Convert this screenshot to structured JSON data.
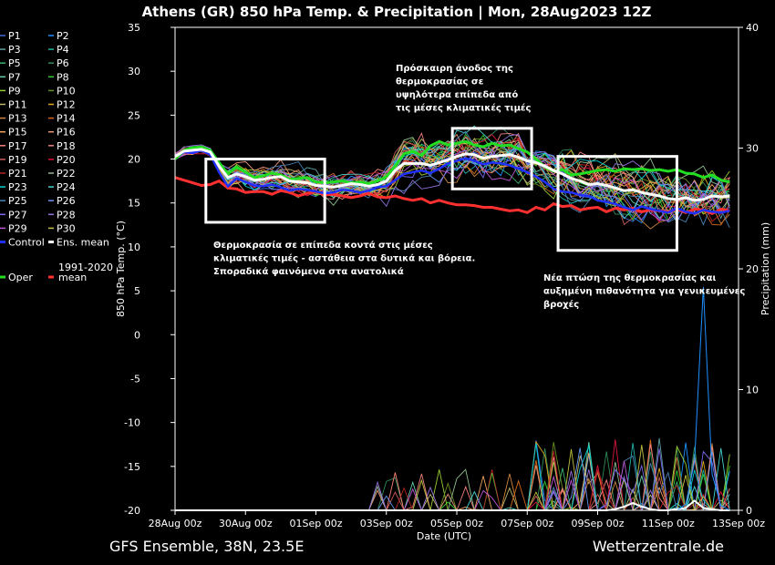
{
  "chart_data": {
    "type": "line",
    "title": "Athens  (GR)  850 hPa Temp. & Precipitation | Mon, 28Aug2023 12Z",
    "xlabel": "Date (UTC)",
    "ylabel": "850 hPa Temp. (°C)",
    "y2label": "Precipitation (mm)",
    "ylim": [
      -20,
      35
    ],
    "y2lim": [
      0,
      40
    ],
    "yticks": [
      "35",
      "30",
      "25",
      "20",
      "15",
      "10",
      "5",
      "0",
      "-5",
      "-10",
      "-15",
      "-20"
    ],
    "y2ticks": [
      "40",
      "30",
      "20",
      "10",
      "0"
    ],
    "xticks": [
      "28Aug 00z",
      "30Aug 00z",
      "01Sep 00z",
      "03Sep 00z",
      "05Sep 00z",
      "07Sep 00z",
      "09Sep 00z",
      "11Sep 00z",
      "13Sep 00z"
    ],
    "x_start": "28Aug 00z",
    "x_step_hours": 6,
    "n_steps": 64,
    "grid": false,
    "legend_position": "left",
    "legend": [
      [
        "P1",
        "P2"
      ],
      [
        "P3",
        "P4"
      ],
      [
        "P5",
        "P6"
      ],
      [
        "P7",
        "P8"
      ],
      [
        "P9",
        "P10"
      ],
      [
        "P11",
        "P12"
      ],
      [
        "P13",
        "P14"
      ],
      [
        "P15",
        "P16"
      ],
      [
        "P17",
        "P18"
      ],
      [
        "P19",
        "P20"
      ],
      [
        "P21",
        "P22"
      ],
      [
        "P23",
        "P24"
      ],
      [
        "P25",
        "P26"
      ],
      [
        "P27",
        "P28"
      ],
      [
        "P29",
        "P30"
      ],
      [
        "Control",
        "Ens. mean"
      ],
      [
        "Oper",
        "1991-2020 mean"
      ]
    ],
    "colors": {
      "background": "#000000",
      "oper": "#22dd22",
      "ens_mean": "#ffffff",
      "control": "#2030ff",
      "climate_mean": "#ff3030",
      "boxes": "#ffffff"
    },
    "member_colors": [
      "#4169e1",
      "#1e90ff",
      "#5f9ea0",
      "#20b2aa",
      "#3cb371",
      "#2e8b57",
      "#66cdaa",
      "#32cd32",
      "#9acd32",
      "#6b8e23",
      "#bdb76b",
      "#daa520",
      "#cd853f",
      "#d2691e",
      "#f4a460",
      "#e9967a",
      "#fa8072",
      "#f08080",
      "#cd5c5c",
      "#dc143c",
      "#b22222",
      "#8fbc8f",
      "#00ced1",
      "#48d1cc",
      "#4682b4",
      "#6495ed",
      "#7b68ee",
      "#9370db",
      "#ba55d3",
      "#c0c040"
    ],
    "series": [
      {
        "name": "Ens. mean",
        "values": [
          20.3,
          20.9,
          21.0,
          21.1,
          20.8,
          19.2,
          17.9,
          18.3,
          18.0,
          17.6,
          17.7,
          17.9,
          18.0,
          17.5,
          17.4,
          17.3,
          17.0,
          16.9,
          16.8,
          17.0,
          17.2,
          17.1,
          16.9,
          17.1,
          17.5,
          18.7,
          19.5,
          19.5,
          19.5,
          19.3,
          19.6,
          19.9,
          20.3,
          20.6,
          20.5,
          20.1,
          20.3,
          20.4,
          20.5,
          20.2,
          19.8,
          19.6,
          19.2,
          18.7,
          18.3,
          17.8,
          17.5,
          17.1,
          17.2,
          17.0,
          16.7,
          16.4,
          16.5,
          16.2,
          16.0,
          15.8,
          15.5,
          15.4,
          15.6,
          15.3,
          15.4,
          15.8,
          15.7,
          15.8
        ]
      },
      {
        "name": "Oper",
        "values": [
          20.0,
          21.0,
          21.3,
          21.4,
          21.0,
          19.6,
          18.3,
          19.1,
          18.5,
          17.9,
          18.1,
          18.4,
          18.2,
          17.7,
          17.8,
          17.9,
          17.4,
          17.3,
          17.4,
          17.5,
          17.3,
          17.4,
          17.2,
          17.5,
          18.0,
          19.2,
          20.6,
          20.9,
          20.4,
          21.5,
          22.0,
          21.6,
          21.8,
          22.0,
          21.6,
          21.4,
          21.8,
          21.5,
          21.6,
          21.2,
          20.8,
          20.0,
          19.1,
          18.6,
          18.8,
          18.2,
          18.3,
          18.5,
          18.7,
          18.8,
          18.6,
          18.9,
          18.8,
          18.9,
          18.7,
          18.8,
          18.6,
          18.8,
          18.4,
          18.3,
          17.9,
          18.2,
          17.6,
          17.4
        ]
      },
      {
        "name": "Control",
        "values": [
          20.1,
          20.8,
          20.7,
          21.0,
          20.5,
          18.5,
          16.9,
          17.8,
          17.4,
          17.0,
          16.9,
          17.1,
          16.8,
          16.4,
          16.6,
          16.5,
          16.3,
          16.1,
          16.2,
          16.5,
          16.4,
          16.2,
          16.4,
          16.8,
          16.9,
          17.6,
          18.3,
          18.5,
          18.7,
          18.4,
          18.9,
          19.5,
          19.8,
          20.1,
          19.8,
          19.4,
          19.6,
          19.5,
          19.3,
          18.9,
          18.5,
          18.0,
          17.4,
          16.6,
          16.3,
          16.2,
          15.9,
          15.8,
          15.3,
          15.1,
          14.9,
          14.5,
          14.2,
          14.6,
          14.3,
          14.1,
          13.9,
          14.4,
          14.0,
          13.8,
          14.2,
          14.0,
          13.9,
          14.1
        ]
      },
      {
        "name": "1991-2020 mean",
        "values": [
          17.9,
          17.6,
          17.3,
          17.0,
          17.1,
          17.5,
          16.7,
          16.6,
          16.2,
          16.3,
          16.3,
          16.0,
          16.4,
          16.2,
          15.8,
          16.1,
          16.3,
          15.9,
          16.0,
          15.8,
          15.6,
          15.8,
          16.1,
          15.7,
          15.6,
          15.8,
          15.5,
          15.3,
          15.5,
          15.0,
          15.3,
          15.0,
          14.8,
          14.8,
          14.7,
          14.5,
          14.5,
          14.3,
          14.1,
          14.2,
          13.9,
          14.5,
          14.2,
          14.9,
          14.6,
          14.7,
          14.2,
          14.4,
          14.5,
          14.0,
          14.4,
          14.2,
          14.4,
          14.0,
          14.2,
          14.1,
          14.0,
          14.3,
          13.9,
          14.3,
          14.2,
          13.8,
          14.3,
          14.1
        ]
      }
    ],
    "precip_highlights": [
      {
        "name": "Ens. mean precipitation",
        "values": [
          0,
          0,
          0,
          0,
          0,
          0,
          0,
          0,
          0,
          0,
          0,
          0,
          0,
          0,
          0,
          0,
          0,
          0,
          0,
          0,
          0,
          0,
          0,
          0,
          0,
          0,
          0,
          0,
          0,
          0,
          0,
          0,
          0,
          0,
          0,
          0,
          0,
          0,
          0,
          0,
          0,
          0,
          0,
          0,
          0,
          0,
          0,
          0,
          0,
          0,
          0.1,
          0.3,
          0.6,
          0.3,
          0.1,
          0,
          0,
          0.1,
          0.2,
          0.8,
          0.2,
          0.1,
          0,
          0
        ]
      },
      {
        "name": "P spike",
        "values": [
          0,
          0,
          0,
          0,
          0,
          0,
          0,
          0,
          0,
          0,
          0,
          0,
          0,
          0,
          0,
          0,
          0,
          0,
          0,
          0,
          0,
          0,
          0,
          0,
          0,
          0,
          0,
          0,
          0,
          0,
          0,
          0,
          0,
          0,
          0,
          0,
          0,
          0,
          0,
          0,
          0,
          0,
          0,
          0,
          0,
          0,
          0,
          0,
          0,
          0,
          0,
          0,
          0,
          0,
          0,
          0,
          0,
          0,
          0.5,
          4.0,
          18.5,
          3.0,
          0.4,
          0
        ]
      }
    ],
    "annotations": [
      {
        "box": {
          "x_start": 14,
          "x_end": 68,
          "y_top": 20,
          "y_bottom": 12.8
        },
        "text": [
          "Θερμοκρασία σε επίπεδα κοντά στις μέσες",
          "κλιματικές τιμές - αστάθεια στα δυτικά και βόρεια.",
          "Σποραδικά φαινόμενα στα ανατολικά"
        ]
      },
      {
        "box": {
          "x_start": 126,
          "x_end": 162,
          "y_top": 23.5,
          "y_bottom": 16.6
        },
        "text": [
          "Πρόσκαιρη άνοδος της",
          "θερμοκρασίας σε",
          "υψηλότερα επίπεδα από",
          "τις μέσες κλιματικές τιμές"
        ]
      },
      {
        "box": {
          "x_start": 174,
          "x_end": 228,
          "y_top": 20.3,
          "y_bottom": 9.6
        },
        "text": [
          "Νέα πτώση της θερμοκρασίας και",
          "αυξημένη πιθανότητα για γενικευμένες",
          "βροχές"
        ]
      }
    ]
  },
  "footer": {
    "source": "GFS Ensemble, 38N, 23.5E",
    "site": "Wetterzentrale.de"
  }
}
